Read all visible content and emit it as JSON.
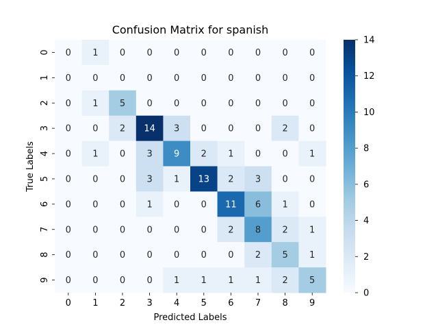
{
  "chart_data": {
    "type": "heatmap",
    "title": "Confusion Matrix for spanish",
    "xlabel": "Predicted Labels",
    "ylabel": "True Labels",
    "x_categories": [
      "0",
      "1",
      "2",
      "3",
      "4",
      "5",
      "6",
      "7",
      "8",
      "9"
    ],
    "y_categories": [
      "0",
      "1",
      "2",
      "3",
      "4",
      "5",
      "6",
      "7",
      "8",
      "9"
    ],
    "values": [
      [
        0,
        1,
        0,
        0,
        0,
        0,
        0,
        0,
        0,
        0
      ],
      [
        0,
        0,
        0,
        0,
        0,
        0,
        0,
        0,
        0,
        0
      ],
      [
        0,
        1,
        5,
        0,
        0,
        0,
        0,
        0,
        0,
        0
      ],
      [
        0,
        0,
        2,
        14,
        3,
        0,
        0,
        0,
        2,
        0
      ],
      [
        0,
        1,
        0,
        3,
        9,
        2,
        1,
        0,
        0,
        1
      ],
      [
        0,
        0,
        0,
        3,
        1,
        13,
        2,
        3,
        0,
        0
      ],
      [
        0,
        0,
        0,
        1,
        0,
        0,
        11,
        6,
        1,
        0
      ],
      [
        0,
        0,
        0,
        0,
        0,
        0,
        2,
        8,
        2,
        1
      ],
      [
        0,
        0,
        0,
        0,
        0,
        0,
        0,
        2,
        5,
        1
      ],
      [
        0,
        0,
        0,
        0,
        1,
        1,
        1,
        1,
        2,
        5
      ]
    ],
    "colormap": "Blues",
    "vmin": 0,
    "vmax": 14,
    "colorbar_ticks": [
      0,
      2,
      4,
      6,
      8,
      10,
      12,
      14
    ],
    "annotations": true,
    "grid": false
  }
}
